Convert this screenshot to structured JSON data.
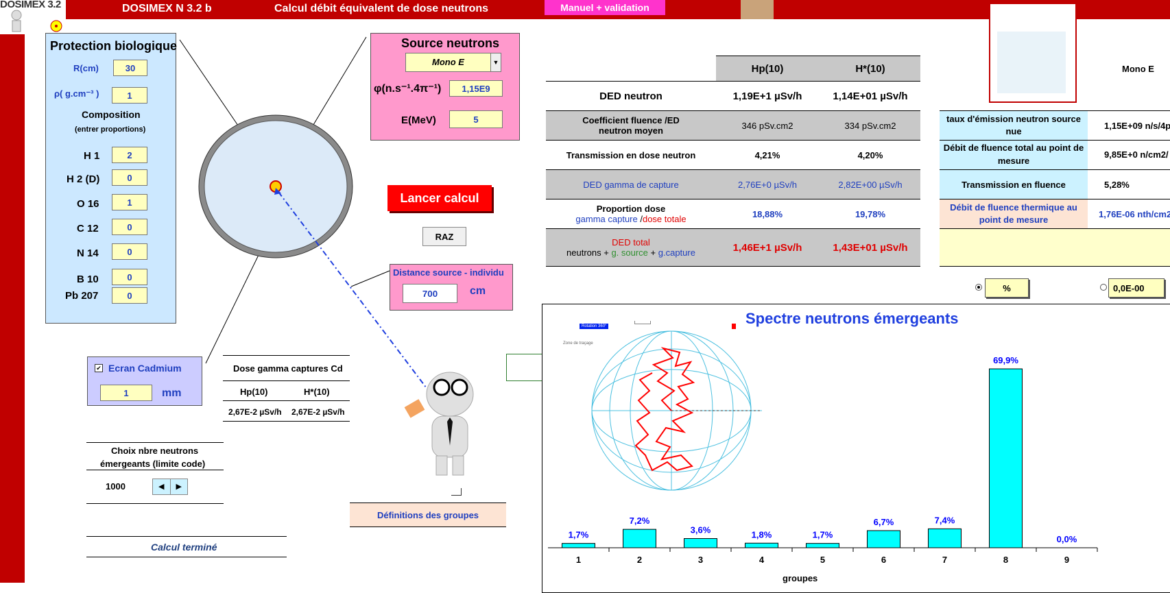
{
  "app": {
    "logo_text": "DOSIMEX 3.2",
    "title": "DOSIMEX N 3.2 b",
    "subtitle": "Calcul débit équivalent de dose neutrons",
    "manual_button": "Manuel + validation"
  },
  "protection": {
    "title": "Protection biologique",
    "r_label": "R(cm)",
    "r_value": "30",
    "rho_label": "ρ( g.cm⁻³ )",
    "rho_value": "1",
    "composition_label": "Composition",
    "composition_sub": "(entrer proportions)",
    "elements": [
      {
        "label": "H 1",
        "value": "2"
      },
      {
        "label": "H 2 (D)",
        "value": "0"
      },
      {
        "label": "O 16",
        "value": "1"
      },
      {
        "label": "C 12",
        "value": "0"
      },
      {
        "label": "N 14",
        "value": "0"
      },
      {
        "label": "B 10",
        "value": "0"
      },
      {
        "label": "Pb 207",
        "value": "0"
      }
    ]
  },
  "source": {
    "title": "Source neutrons",
    "type_selected": "Mono E",
    "phi_label": "φ(n.s⁻¹.4π⁻¹)",
    "phi_value": "1,15E9",
    "e_label": "E(MeV)",
    "e_value": "5"
  },
  "actions": {
    "run_label": "Lancer calcul",
    "reset_label": "RAZ"
  },
  "distance": {
    "label": "Distance source - individu",
    "value": "700",
    "unit": "cm"
  },
  "cadmium": {
    "label": "Ecran Cadmium",
    "checked_mark": "✔",
    "value": "1",
    "unit": "mm"
  },
  "gamma_cd": {
    "title": "Dose gamma captures Cd",
    "col1": "Hp(10)",
    "col2": "H*(10)",
    "val1": "2,67E-2 µSv/h",
    "val2": "2,67E-2 µSv/h"
  },
  "neutron_choice": {
    "label_line1": "Choix nbre neutrons",
    "label_line2": "émergeants (limite code)",
    "value": "1000",
    "status": "Calcul terminé"
  },
  "definitions_button": "Définitions des groupes",
  "results": {
    "col1": "Hp(10)",
    "col2": "H*(10)",
    "rows": [
      {
        "label": "DED neutron",
        "v1": "1,19E+1 µSv/h",
        "v2": "1,14E+01 µSv/h"
      },
      {
        "label1": "Coefficient  fluence /ED",
        "label2": "neutron moyen",
        "v1": "346 pSv.cm2",
        "v2": "334 pSv.cm2"
      },
      {
        "label": "Transmission en dose neutron",
        "v1": "4,21%",
        "v2": "4,20%"
      },
      {
        "label": "DED gamma de capture",
        "v1": "2,76E+0 µSv/h",
        "v2": "2,82E+00 µSv/h"
      },
      {
        "label1": "Proportion  dose",
        "label2a": "gamma capture",
        "label2b": " /",
        "label2c": "dose totale",
        "v1": "18,88%",
        "v2": "19,78%"
      },
      {
        "label1": "DED total",
        "label2a": "neutrons + ",
        "label2b": "g. source",
        "label2c": " + ",
        "label2d": "g.capture",
        "v1": "1,46E+1 µSv/h",
        "v2": "1,43E+01 µSv/h"
      }
    ]
  },
  "right_table": {
    "mode": "Mono E",
    "rows": [
      {
        "label": "taux d'émission neutron source nue",
        "value": "1,15E+09 n/s/4p"
      },
      {
        "label": "Débit de fluence total au point de mesure",
        "value": "9,85E+0 n/cm2/"
      },
      {
        "label": "Transmission en fluence",
        "value": "5,28%"
      },
      {
        "label": "Débit de fluence thermique au point de mesure",
        "value": "1,76E-06 nth/cm2"
      },
      {
        "label": "",
        "value": ""
      }
    ],
    "option1": "%",
    "option2": "0,0E-00"
  },
  "chart_data": {
    "type": "bar",
    "title": "Spectre neutrons émergeants",
    "xlabel": "groupes",
    "categories": [
      "1",
      "2",
      "3",
      "4",
      "5",
      "6",
      "7",
      "8",
      "9"
    ],
    "values": [
      1.7,
      7.2,
      3.6,
      1.8,
      1.7,
      6.7,
      7.4,
      69.9,
      0.0
    ],
    "value_labels": [
      "1,7%",
      "7,2%",
      "3,6%",
      "1,8%",
      "1,7%",
      "6,7%",
      "7,4%",
      "69,9%",
      "0,0%"
    ],
    "ylim": [
      0,
      75
    ],
    "bar_color": "#00ffff"
  },
  "globe": {
    "rotation_label": "Rotation 360°",
    "zone_label": "Zone de traçage"
  },
  "colors": {
    "accent_red": "#c00000",
    "pink_panel": "#ff99cc",
    "blue_panel": "#cce8ff",
    "input_yellow": "#ffffc0"
  }
}
